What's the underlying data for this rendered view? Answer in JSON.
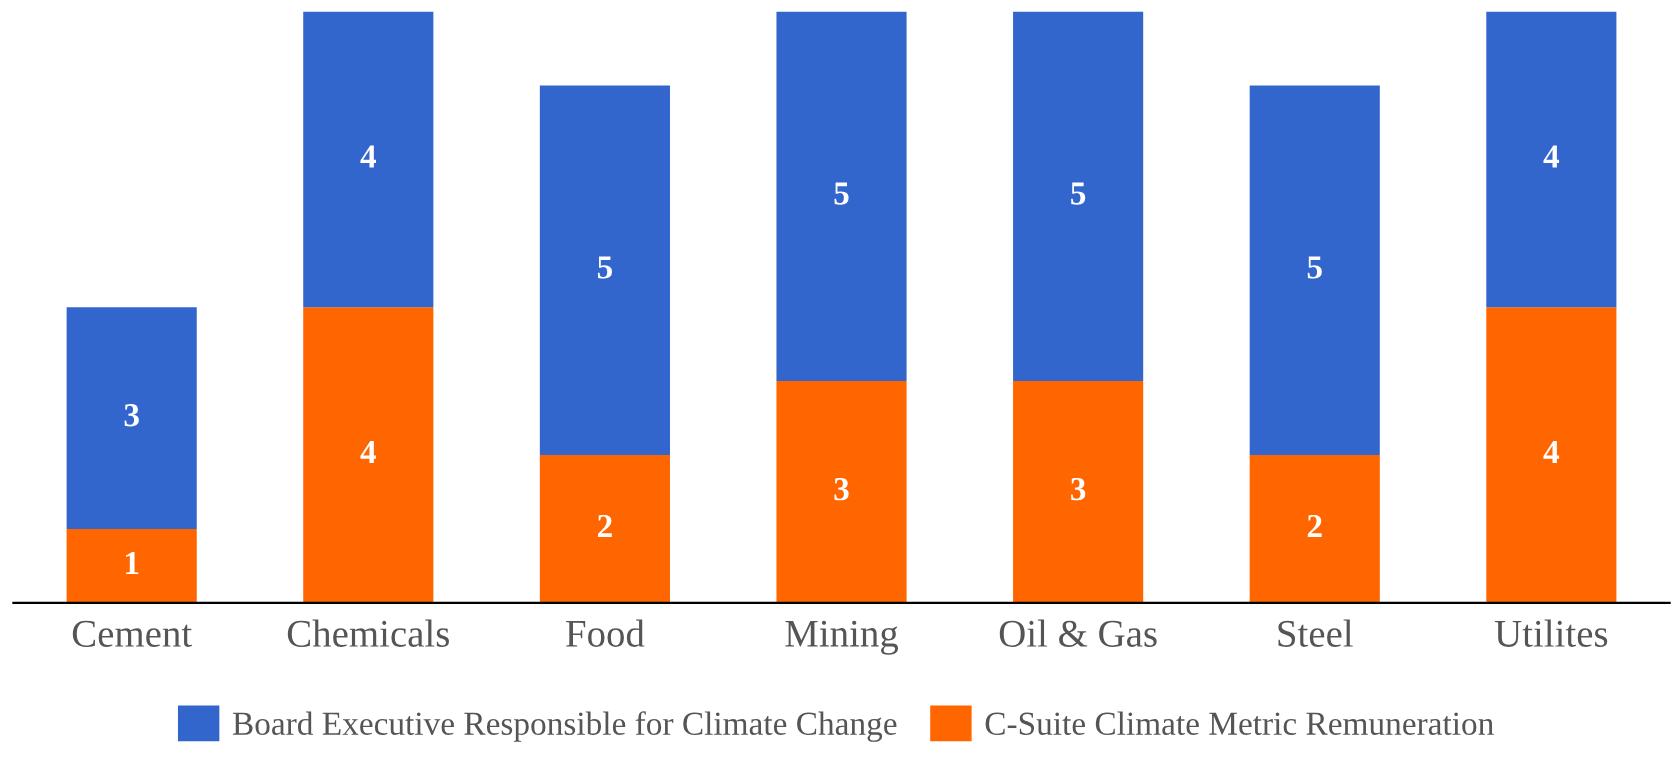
{
  "chart_data": {
    "type": "bar",
    "stacked": true,
    "data_labels": true,
    "legend": "bottom",
    "grid": false,
    "categories": [
      "Cement",
      "Chemicals",
      "Food",
      "Mining",
      "Oil & Gas",
      "Steel",
      "Utilites"
    ],
    "series": [
      {
        "name": "C-Suite Climate Metric Remuneration",
        "color": "#ff6600",
        "values": [
          1,
          4,
          2,
          3,
          3,
          2,
          4
        ]
      },
      {
        "name": "Board Executive Responsible for Climate Change",
        "color": "#3366cc",
        "values": [
          3,
          4,
          5,
          5,
          5,
          5,
          4
        ]
      }
    ]
  }
}
